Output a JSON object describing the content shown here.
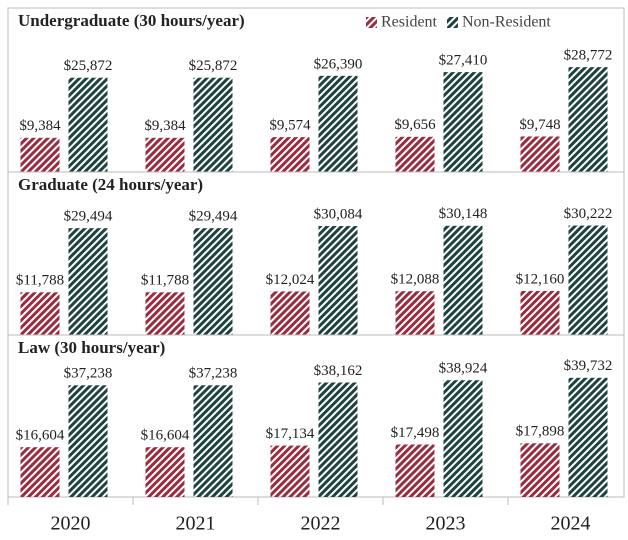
{
  "chart_data": [
    {
      "type": "bar",
      "title": "Undergraduate (30 hours/year)",
      "ylim": [
        0,
        45000
      ],
      "series": [
        {
          "name": "Resident",
          "color": "#9b2c3f",
          "values": [
            9384,
            9384,
            9574,
            9656,
            9748
          ],
          "value_labels": [
            "$9,384",
            "$9,384",
            "$9,574",
            "$9,656",
            "$9,748"
          ]
        },
        {
          "name": "Non-Resident",
          "color": "#1e4341",
          "values": [
            25872,
            25872,
            26390,
            27410,
            28772
          ],
          "value_labels": [
            "$25,872",
            "$25,872",
            "$26,390",
            "$27,410",
            "$28,772"
          ]
        }
      ]
    },
    {
      "type": "bar",
      "title": "Graduate (24 hours/year)",
      "ylim": [
        0,
        45000
      ],
      "series": [
        {
          "color": "#9b2c3f",
          "values": [
            11788,
            11788,
            12024,
            12088,
            12160
          ],
          "value_labels": [
            "$11,788",
            "$11,788",
            "$12,024",
            "$12,088",
            "$12,160"
          ]
        },
        {
          "color": "#1e4341",
          "values": [
            29494,
            29494,
            30084,
            30148,
            30222
          ],
          "value_labels": [
            "$29,494",
            "$29,494",
            "$30,084",
            "$30,148",
            "$30,222"
          ]
        }
      ]
    },
    {
      "type": "bar",
      "title": "Law (30 hours/year)",
      "ylim": [
        0,
        54000
      ],
      "categories": [
        "2020",
        "2021",
        "2022",
        "2023",
        "2024"
      ],
      "series": [
        {
          "color": "#9b2c3f",
          "values": [
            16604,
            16604,
            17134,
            17498,
            17898
          ],
          "value_labels": [
            "$16,604",
            "$16,604",
            "$17,134",
            "$17,498",
            "$17,898"
          ]
        },
        {
          "color": "#1e4341",
          "values": [
            37238,
            37238,
            38162,
            38924,
            39732
          ],
          "value_labels": [
            "$37,238",
            "$37,238",
            "$38,162",
            "$38,924",
            "$39,732"
          ]
        }
      ]
    }
  ]
}
